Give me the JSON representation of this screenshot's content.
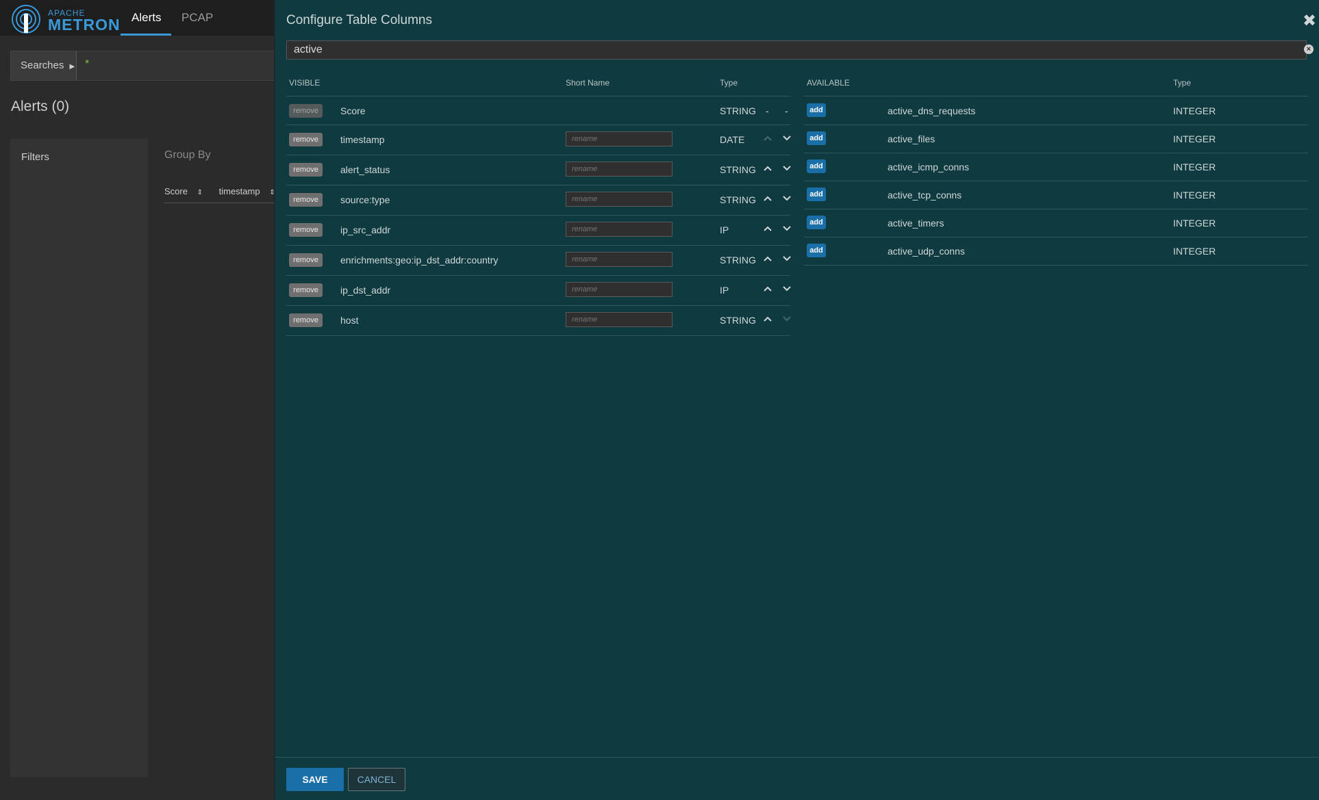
{
  "app": {
    "brand_top": "APACHE",
    "brand_main": "METRON",
    "nav": [
      {
        "label": "Alerts",
        "active": true
      },
      {
        "label": "PCAP",
        "active": false
      }
    ],
    "searches_label": "Searches",
    "search_query": "*",
    "alerts_title": "Alerts (0)",
    "filters_label": "Filters",
    "group_by_label": "Group By",
    "table_cols": [
      "Score",
      "timestamp"
    ]
  },
  "modal": {
    "title": "Configure Table Columns",
    "filter_value": "active",
    "visible_headers": {
      "visible": "VISIBLE",
      "short_name": "Short Name",
      "type": "Type"
    },
    "available_headers": {
      "available": "AVAILABLE",
      "type": "Type"
    },
    "remove_label": "remove",
    "add_label": "add",
    "rename_placeholder": "rename",
    "visible_rows": [
      {
        "name": "Score",
        "type": "STRING",
        "up": "-",
        "down": "-"
      },
      {
        "name": "timestamp",
        "type": "DATE"
      },
      {
        "name": "alert_status",
        "type": "STRING"
      },
      {
        "name": "source:type",
        "type": "STRING"
      },
      {
        "name": "ip_src_addr",
        "type": "IP"
      },
      {
        "name": "enrichments:geo:ip_dst_addr:country",
        "type": "STRING"
      },
      {
        "name": "ip_dst_addr",
        "type": "IP"
      },
      {
        "name": "host",
        "type": "STRING"
      }
    ],
    "available_rows": [
      {
        "name": "active_dns_requests",
        "type": "INTEGER"
      },
      {
        "name": "active_files",
        "type": "INTEGER"
      },
      {
        "name": "active_icmp_conns",
        "type": "INTEGER"
      },
      {
        "name": "active_tcp_conns",
        "type": "INTEGER"
      },
      {
        "name": "active_timers",
        "type": "INTEGER"
      },
      {
        "name": "active_udp_conns",
        "type": "INTEGER"
      }
    ],
    "save_label": "SAVE",
    "cancel_label": "CANCEL"
  },
  "colors": {
    "modal_bg": "#0f3a40",
    "accent": "#1b6fa8",
    "app_bg": "#2b2b2b"
  }
}
